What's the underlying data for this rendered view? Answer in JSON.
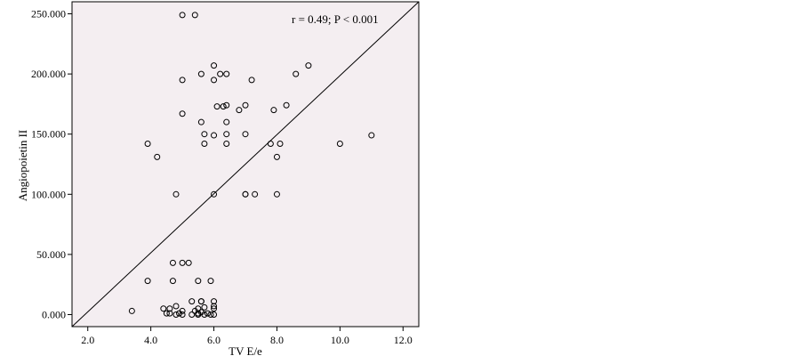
{
  "chart_data": {
    "type": "scatter",
    "title": "",
    "xlabel": "TV E/e",
    "ylabel": "Angiopoietin II",
    "annotation": "r = 0.49; P < 0.001",
    "xlim": [
      1.5,
      12.5
    ],
    "ylim": [
      -10,
      260
    ],
    "xticks": [
      2.0,
      4.0,
      6.0,
      8.0,
      10.0,
      12.0
    ],
    "xtick_labels": [
      "2.0",
      "4.0",
      "6.0",
      "8.0",
      "10.0",
      "12.0"
    ],
    "yticks": [
      0,
      50,
      100,
      150,
      200,
      250
    ],
    "ytick_labels": [
      "0.000",
      "50.000",
      "100.000",
      "150.000",
      "200.000",
      "250.000"
    ],
    "grid": false,
    "plot_background": "#f4eef1",
    "marker_color": "#000000",
    "fit_line": {
      "x": [
        1.5,
        12.5
      ],
      "y": [
        -10,
        260
      ]
    },
    "points": [
      [
        5.0,
        249
      ],
      [
        5.4,
        249
      ],
      [
        5.6,
        200
      ],
      [
        6.0,
        207
      ],
      [
        6.2,
        200
      ],
      [
        6.4,
        200
      ],
      [
        6.0,
        195
      ],
      [
        5.0,
        195
      ],
      [
        7.2,
        195
      ],
      [
        8.6,
        200
      ],
      [
        9.0,
        207
      ],
      [
        6.1,
        173
      ],
      [
        6.3,
        173
      ],
      [
        6.4,
        174
      ],
      [
        6.8,
        170
      ],
      [
        7.0,
        174
      ],
      [
        7.9,
        170
      ],
      [
        8.3,
        174
      ],
      [
        5.0,
        167
      ],
      [
        5.6,
        160
      ],
      [
        6.4,
        160
      ],
      [
        5.7,
        150
      ],
      [
        6.0,
        149
      ],
      [
        6.4,
        150
      ],
      [
        7.0,
        150
      ],
      [
        11.0,
        149
      ],
      [
        3.9,
        142
      ],
      [
        5.7,
        142
      ],
      [
        6.4,
        142
      ],
      [
        7.8,
        142
      ],
      [
        8.1,
        142
      ],
      [
        10.0,
        142
      ],
      [
        4.2,
        131
      ],
      [
        8.0,
        131
      ],
      [
        4.8,
        100
      ],
      [
        6.0,
        100
      ],
      [
        7.0,
        100
      ],
      [
        7.0,
        100
      ],
      [
        7.3,
        100
      ],
      [
        8.0,
        100
      ],
      [
        4.7,
        43
      ],
      [
        5.0,
        43
      ],
      [
        5.2,
        43
      ],
      [
        3.9,
        28
      ],
      [
        4.7,
        28
      ],
      [
        5.5,
        28
      ],
      [
        5.9,
        28
      ],
      [
        5.6,
        11
      ],
      [
        5.6,
        11
      ],
      [
        6.0,
        11
      ],
      [
        5.3,
        11
      ],
      [
        4.4,
        5
      ],
      [
        4.6,
        5
      ],
      [
        4.8,
        7
      ],
      [
        5.0,
        3
      ],
      [
        5.5,
        5
      ],
      [
        5.7,
        6
      ],
      [
        6.0,
        5
      ],
      [
        6.0,
        7
      ],
      [
        3.4,
        3
      ],
      [
        4.5,
        1
      ],
      [
        4.6,
        1
      ],
      [
        4.8,
        0
      ],
      [
        4.9,
        1
      ],
      [
        5.0,
        0
      ],
      [
        5.3,
        0
      ],
      [
        5.5,
        1
      ],
      [
        5.6,
        2
      ],
      [
        5.7,
        0
      ],
      [
        5.8,
        1
      ],
      [
        5.9,
        0
      ],
      [
        6.0,
        0
      ],
      [
        5.4,
        3
      ],
      [
        5.5,
        0
      ]
    ]
  }
}
